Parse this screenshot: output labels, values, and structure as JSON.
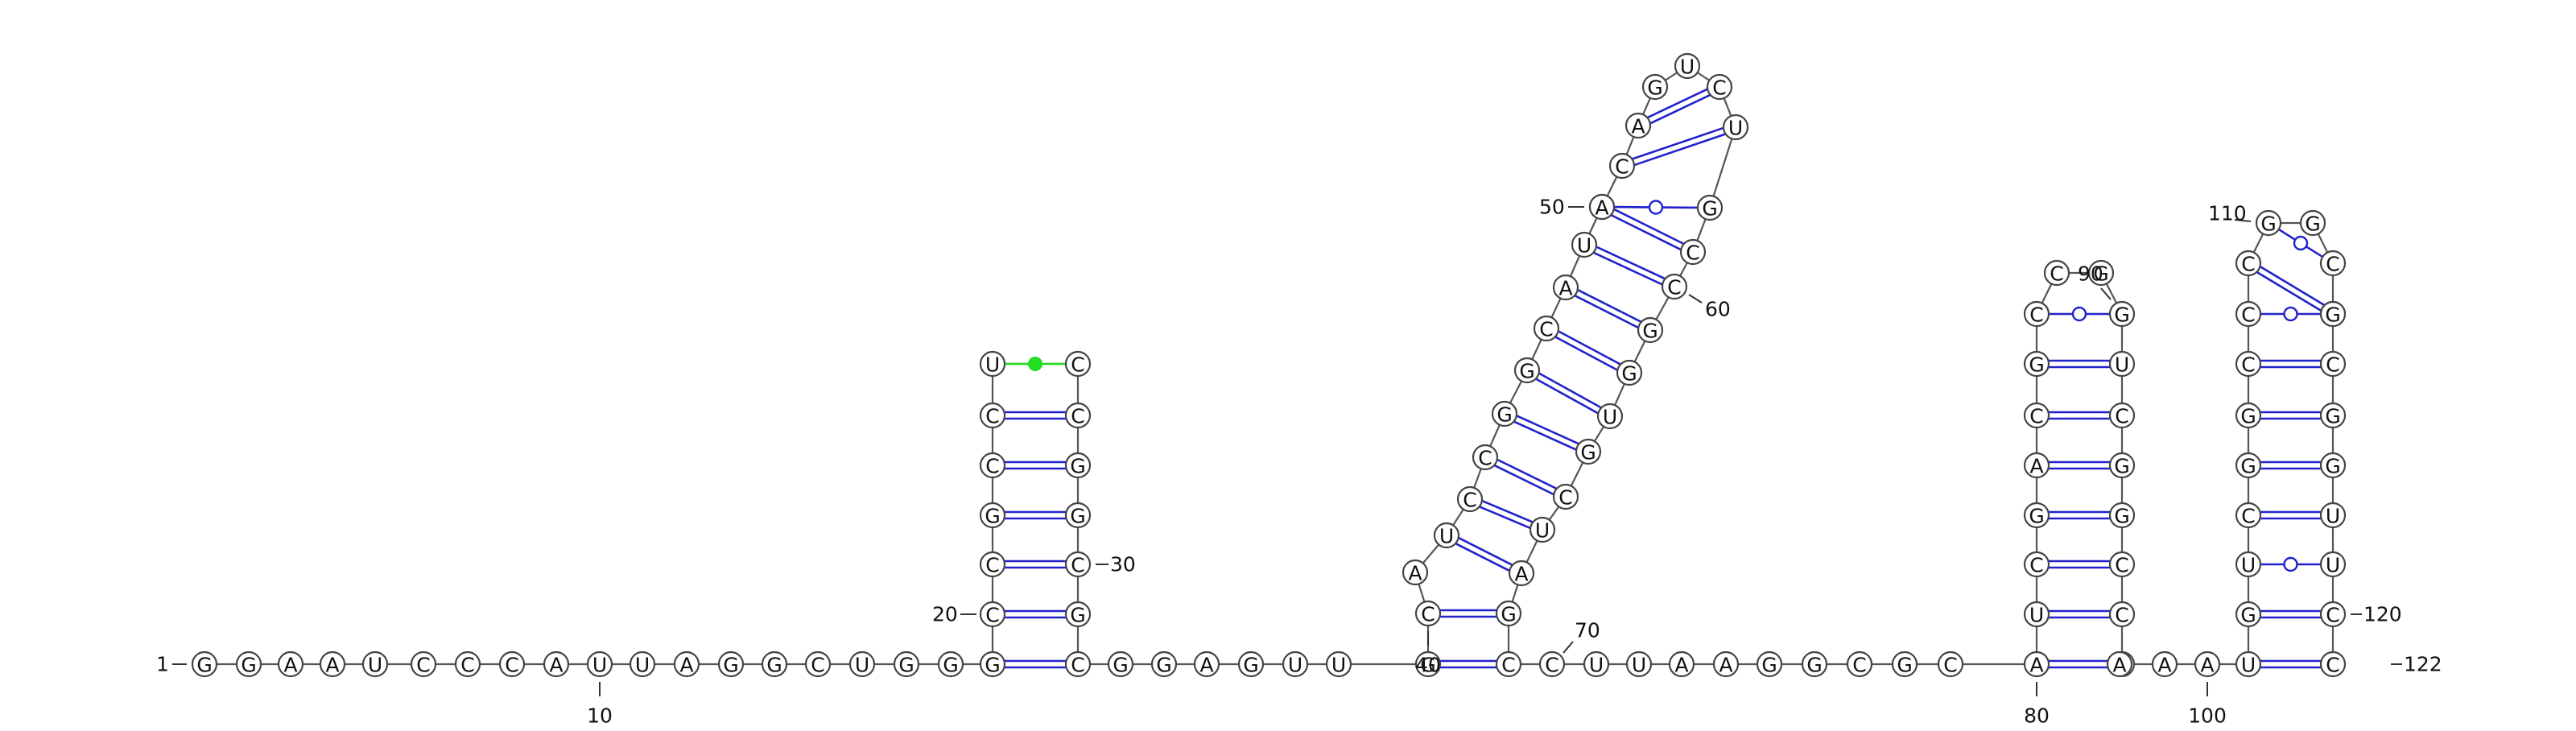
{
  "sequence": "GGAAUCCCAUUAGGCUGGGCCGCCUCCGGCGCGGAGUUGCAUCCGGCAUAACAGUCUGCCGGUGCUAGCCUUAAGGCGCAUCGACGCCGGUCGGCCCAAAUGUCGGCCCGGCUGCGGUUCC",
  "colors": {
    "backbone": "#555555",
    "pair": "#2222cc",
    "noncanonical": "#22dd22"
  },
  "labels": [
    {
      "text": "1",
      "nucleotide": 1
    },
    {
      "text": "10",
      "nucleotide": 10
    },
    {
      "text": "20",
      "nucleotide": 20
    },
    {
      "text": "30",
      "nucleotide": 30
    },
    {
      "text": "40",
      "nucleotide": 40
    },
    {
      "text": "50",
      "nucleotide": 50
    },
    {
      "text": "60",
      "nucleotide": 60
    },
    {
      "text": "70",
      "nucleotide": 70
    },
    {
      "text": "80",
      "nucleotide": 80
    },
    {
      "text": "90",
      "nucleotide": 90
    },
    {
      "text": "100",
      "nucleotide": 100
    },
    {
      "text": "110",
      "nucleotide": 110
    },
    {
      "text": "120",
      "nucleotide": 120
    },
    {
      "text": "122",
      "nucleotide": 122
    }
  ],
  "pairs": [
    {
      "i": 19,
      "j": 32,
      "type": "canonical"
    },
    {
      "i": 20,
      "j": 31,
      "type": "canonical"
    },
    {
      "i": 21,
      "j": 30,
      "type": "canonical"
    },
    {
      "i": 22,
      "j": 29,
      "type": "canonical"
    },
    {
      "i": 23,
      "j": 28,
      "type": "canonical"
    },
    {
      "i": 24,
      "j": 27,
      "type": "canonical"
    },
    {
      "i": 25,
      "j": 26,
      "type": "noncanonical"
    },
    {
      "i": 39,
      "j": 69,
      "type": "canonical"
    },
    {
      "i": 40,
      "j": 68,
      "type": "canonical"
    },
    {
      "i": 42,
      "j": 67,
      "type": "canonical"
    },
    {
      "i": 43,
      "j": 66,
      "type": "canonical"
    },
    {
      "i": 44,
      "j": 65,
      "type": "canonical"
    },
    {
      "i": 45,
      "j": 64,
      "type": "canonical"
    },
    {
      "i": 46,
      "j": 63,
      "type": "canonical"
    },
    {
      "i": 47,
      "j": 62,
      "type": "canonical"
    },
    {
      "i": 48,
      "j": 61,
      "type": "canonical"
    },
    {
      "i": 49,
      "j": 60,
      "type": "canonical"
    },
    {
      "i": 50,
      "j": 59,
      "type": "canonical"
    },
    {
      "i": 51,
      "j": 58,
      "type": "GU"
    },
    {
      "i": 52,
      "j": 57,
      "type": "canonical"
    },
    {
      "i": 53,
      "j": 56,
      "type": "canonical"
    },
    {
      "i": 80,
      "j": 97,
      "type": "canonical"
    },
    {
      "i": 81,
      "j": 96,
      "type": "canonical"
    },
    {
      "i": 82,
      "j": 95,
      "type": "canonical"
    },
    {
      "i": 83,
      "j": 94,
      "type": "canonical"
    },
    {
      "i": 84,
      "j": 93,
      "type": "canonical"
    },
    {
      "i": 85,
      "j": 92,
      "type": "canonical"
    },
    {
      "i": 86,
      "j": 91,
      "type": "canonical"
    },
    {
      "i": 87,
      "j": 90,
      "type": "GU"
    },
    {
      "i": 101,
      "j": 121,
      "type": "canonical"
    },
    {
      "i": 102,
      "j": 120,
      "type": "canonical"
    },
    {
      "i": 103,
      "j": 119,
      "type": "GU"
    },
    {
      "i": 104,
      "j": 118,
      "type": "canonical"
    },
    {
      "i": 105,
      "j": 117,
      "type": "canonical"
    },
    {
      "i": 106,
      "j": 116,
      "type": "canonical"
    },
    {
      "i": 107,
      "j": 115,
      "type": "canonical"
    },
    {
      "i": 108,
      "j": 114,
      "type": "GU"
    },
    {
      "i": 109,
      "j": 113,
      "type": "canonical"
    },
    {
      "i": 110,
      "j": 112,
      "type": "GU"
    }
  ]
}
